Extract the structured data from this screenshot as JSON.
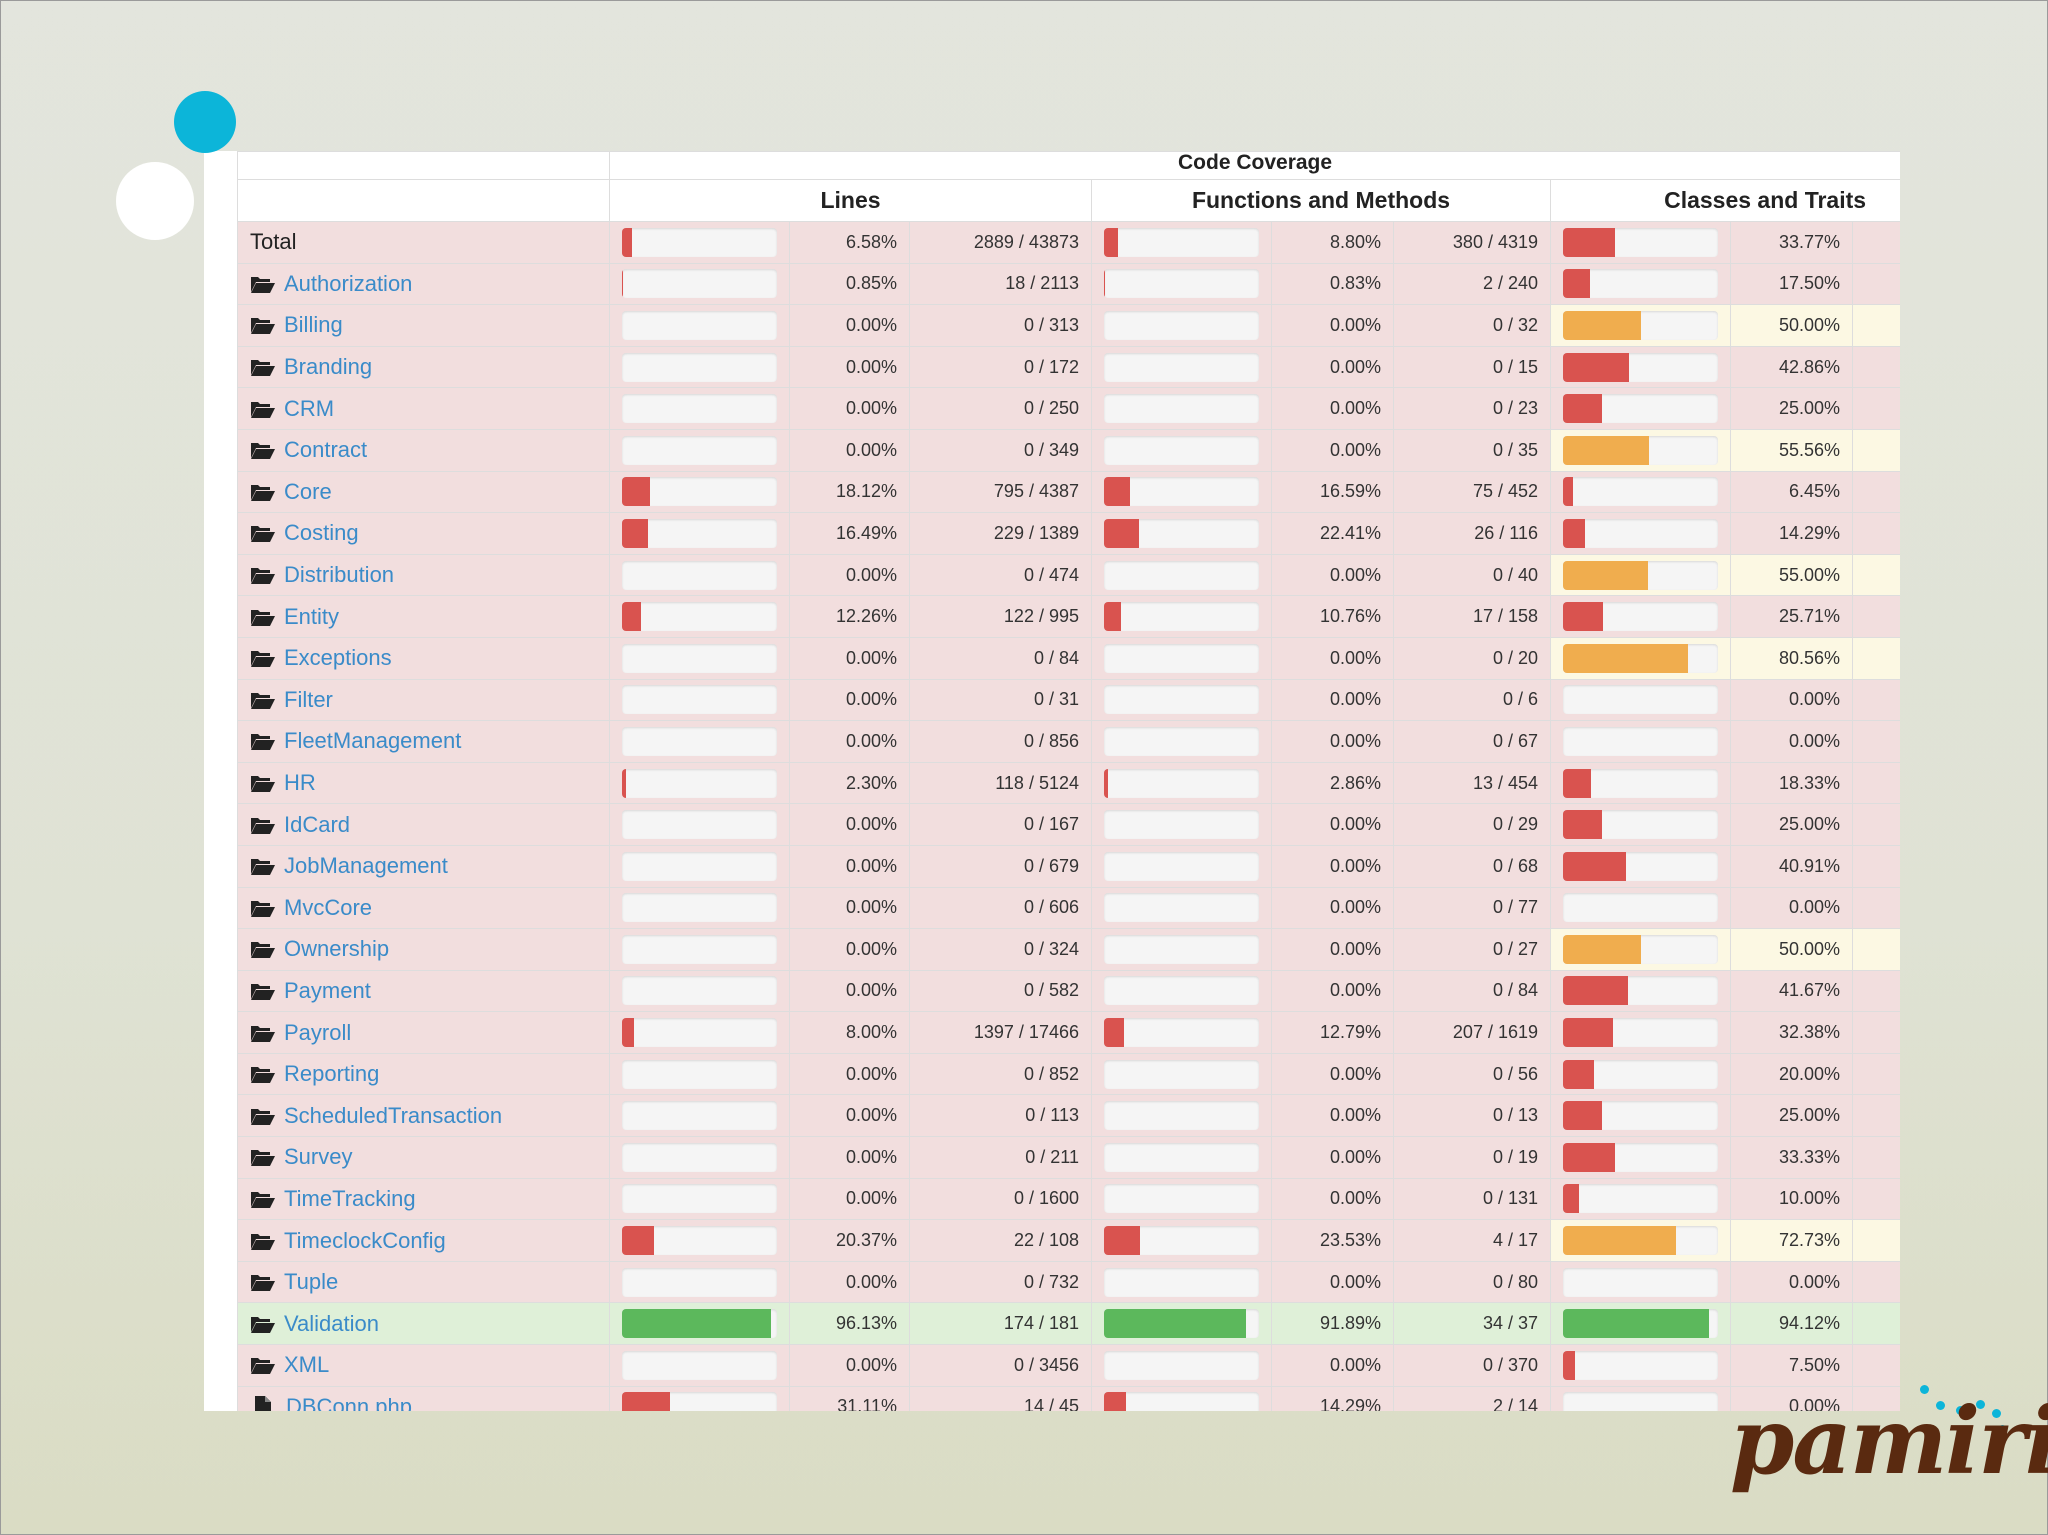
{
  "header": {
    "code_coverage": "Code Coverage",
    "lines": "Lines",
    "functions": "Functions and Methods",
    "classes": "Classes and Traits"
  },
  "rows": [
    {
      "name": "Total",
      "type": "total",
      "lines": {
        "bar": 6.58,
        "pct": "6.58%",
        "count": "2889 / 43873"
      },
      "funcs": {
        "bar": 8.8,
        "pct": "8.80%",
        "count": "380 / 4319"
      },
      "classes": {
        "bar": 33.77,
        "pct": "33.77%"
      }
    },
    {
      "name": "Authorization",
      "type": "dir",
      "lines": {
        "bar": 0.85,
        "pct": "0.85%",
        "count": "18 / 2113"
      },
      "funcs": {
        "bar": 0.83,
        "pct": "0.83%",
        "count": "2 / 240"
      },
      "classes": {
        "bar": 17.5,
        "pct": "17.50%"
      }
    },
    {
      "name": "Billing",
      "type": "dir",
      "lines": {
        "bar": 0,
        "pct": "0.00%",
        "count": "0 / 313"
      },
      "funcs": {
        "bar": 0,
        "pct": "0.00%",
        "count": "0 / 32"
      },
      "classes": {
        "bar": 50.0,
        "pct": "50.00%"
      }
    },
    {
      "name": "Branding",
      "type": "dir",
      "lines": {
        "bar": 0,
        "pct": "0.00%",
        "count": "0 / 172"
      },
      "funcs": {
        "bar": 0,
        "pct": "0.00%",
        "count": "0 / 15"
      },
      "classes": {
        "bar": 42.86,
        "pct": "42.86%"
      }
    },
    {
      "name": "CRM",
      "type": "dir",
      "lines": {
        "bar": 0,
        "pct": "0.00%",
        "count": "0 / 250"
      },
      "funcs": {
        "bar": 0,
        "pct": "0.00%",
        "count": "0 / 23"
      },
      "classes": {
        "bar": 25.0,
        "pct": "25.00%"
      }
    },
    {
      "name": "Contract",
      "type": "dir",
      "lines": {
        "bar": 0,
        "pct": "0.00%",
        "count": "0 / 349"
      },
      "funcs": {
        "bar": 0,
        "pct": "0.00%",
        "count": "0 / 35"
      },
      "classes": {
        "bar": 55.56,
        "pct": "55.56%"
      }
    },
    {
      "name": "Core",
      "type": "dir",
      "lines": {
        "bar": 18.12,
        "pct": "18.12%",
        "count": "795 / 4387"
      },
      "funcs": {
        "bar": 16.59,
        "pct": "16.59%",
        "count": "75 / 452"
      },
      "classes": {
        "bar": 6.45,
        "pct": "6.45%"
      }
    },
    {
      "name": "Costing",
      "type": "dir",
      "lines": {
        "bar": 16.49,
        "pct": "16.49%",
        "count": "229 / 1389"
      },
      "funcs": {
        "bar": 22.41,
        "pct": "22.41%",
        "count": "26 / 116"
      },
      "classes": {
        "bar": 14.29,
        "pct": "14.29%"
      }
    },
    {
      "name": "Distribution",
      "type": "dir",
      "lines": {
        "bar": 0,
        "pct": "0.00%",
        "count": "0 / 474"
      },
      "funcs": {
        "bar": 0,
        "pct": "0.00%",
        "count": "0 / 40"
      },
      "classes": {
        "bar": 55.0,
        "pct": "55.00%"
      }
    },
    {
      "name": "Entity",
      "type": "dir",
      "lines": {
        "bar": 12.26,
        "pct": "12.26%",
        "count": "122 / 995"
      },
      "funcs": {
        "bar": 10.76,
        "pct": "10.76%",
        "count": "17 / 158"
      },
      "classes": {
        "bar": 25.71,
        "pct": "25.71%"
      }
    },
    {
      "name": "Exceptions",
      "type": "dir",
      "lines": {
        "bar": 0,
        "pct": "0.00%",
        "count": "0 / 84"
      },
      "funcs": {
        "bar": 0,
        "pct": "0.00%",
        "count": "0 / 20"
      },
      "classes": {
        "bar": 80.56,
        "pct": "80.56%"
      }
    },
    {
      "name": "Filter",
      "type": "dir",
      "lines": {
        "bar": 0,
        "pct": "0.00%",
        "count": "0 / 31"
      },
      "funcs": {
        "bar": 0,
        "pct": "0.00%",
        "count": "0 / 6"
      },
      "classes": {
        "bar": 0,
        "pct": "0.00%"
      }
    },
    {
      "name": "FleetManagement",
      "type": "dir",
      "lines": {
        "bar": 0,
        "pct": "0.00%",
        "count": "0 / 856"
      },
      "funcs": {
        "bar": 0,
        "pct": "0.00%",
        "count": "0 / 67"
      },
      "classes": {
        "bar": 0,
        "pct": "0.00%"
      }
    },
    {
      "name": "HR",
      "type": "dir",
      "lines": {
        "bar": 2.3,
        "pct": "2.30%",
        "count": "118 / 5124"
      },
      "funcs": {
        "bar": 2.86,
        "pct": "2.86%",
        "count": "13 / 454"
      },
      "classes": {
        "bar": 18.33,
        "pct": "18.33%"
      }
    },
    {
      "name": "IdCard",
      "type": "dir",
      "lines": {
        "bar": 0,
        "pct": "0.00%",
        "count": "0 / 167"
      },
      "funcs": {
        "bar": 0,
        "pct": "0.00%",
        "count": "0 / 29"
      },
      "classes": {
        "bar": 25.0,
        "pct": "25.00%"
      }
    },
    {
      "name": "JobManagement",
      "type": "dir",
      "lines": {
        "bar": 0,
        "pct": "0.00%",
        "count": "0 / 679"
      },
      "funcs": {
        "bar": 0,
        "pct": "0.00%",
        "count": "0 / 68"
      },
      "classes": {
        "bar": 40.91,
        "pct": "40.91%"
      }
    },
    {
      "name": "MvcCore",
      "type": "dir",
      "lines": {
        "bar": 0,
        "pct": "0.00%",
        "count": "0 / 606"
      },
      "funcs": {
        "bar": 0,
        "pct": "0.00%",
        "count": "0 / 77"
      },
      "classes": {
        "bar": 0,
        "pct": "0.00%"
      }
    },
    {
      "name": "Ownership",
      "type": "dir",
      "lines": {
        "bar": 0,
        "pct": "0.00%",
        "count": "0 / 324"
      },
      "funcs": {
        "bar": 0,
        "pct": "0.00%",
        "count": "0 / 27"
      },
      "classes": {
        "bar": 50.0,
        "pct": "50.00%"
      }
    },
    {
      "name": "Payment",
      "type": "dir",
      "lines": {
        "bar": 0,
        "pct": "0.00%",
        "count": "0 / 582"
      },
      "funcs": {
        "bar": 0,
        "pct": "0.00%",
        "count": "0 / 84"
      },
      "classes": {
        "bar": 41.67,
        "pct": "41.67%"
      }
    },
    {
      "name": "Payroll",
      "type": "dir",
      "lines": {
        "bar": 8.0,
        "pct": "8.00%",
        "count": "1397 / 17466"
      },
      "funcs": {
        "bar": 12.79,
        "pct": "12.79%",
        "count": "207 / 1619"
      },
      "classes": {
        "bar": 32.38,
        "pct": "32.38%"
      }
    },
    {
      "name": "Reporting",
      "type": "dir",
      "lines": {
        "bar": 0,
        "pct": "0.00%",
        "count": "0 / 852"
      },
      "funcs": {
        "bar": 0,
        "pct": "0.00%",
        "count": "0 / 56"
      },
      "classes": {
        "bar": 20.0,
        "pct": "20.00%"
      }
    },
    {
      "name": "ScheduledTransaction",
      "type": "dir",
      "lines": {
        "bar": 0,
        "pct": "0.00%",
        "count": "0 / 113"
      },
      "funcs": {
        "bar": 0,
        "pct": "0.00%",
        "count": "0 / 13"
      },
      "classes": {
        "bar": 25.0,
        "pct": "25.00%"
      }
    },
    {
      "name": "Survey",
      "type": "dir",
      "lines": {
        "bar": 0,
        "pct": "0.00%",
        "count": "0 / 211"
      },
      "funcs": {
        "bar": 0,
        "pct": "0.00%",
        "count": "0 / 19"
      },
      "classes": {
        "bar": 33.33,
        "pct": "33.33%"
      }
    },
    {
      "name": "TimeTracking",
      "type": "dir",
      "lines": {
        "bar": 0,
        "pct": "0.00%",
        "count": "0 / 1600"
      },
      "funcs": {
        "bar": 0,
        "pct": "0.00%",
        "count": "0 / 131"
      },
      "classes": {
        "bar": 10.0,
        "pct": "10.00%"
      }
    },
    {
      "name": "TimeclockConfig",
      "type": "dir",
      "lines": {
        "bar": 20.37,
        "pct": "20.37%",
        "count": "22 / 108"
      },
      "funcs": {
        "bar": 23.53,
        "pct": "23.53%",
        "count": "4 / 17"
      },
      "classes": {
        "bar": 72.73,
        "pct": "72.73%"
      }
    },
    {
      "name": "Tuple",
      "type": "dir",
      "lines": {
        "bar": 0,
        "pct": "0.00%",
        "count": "0 / 732"
      },
      "funcs": {
        "bar": 0,
        "pct": "0.00%",
        "count": "0 / 80"
      },
      "classes": {
        "bar": 0,
        "pct": "0.00%"
      }
    },
    {
      "name": "Validation",
      "type": "dir",
      "lines": {
        "bar": 96.13,
        "pct": "96.13%",
        "count": "174 / 181"
      },
      "funcs": {
        "bar": 91.89,
        "pct": "91.89%",
        "count": "34 / 37"
      },
      "classes": {
        "bar": 94.12,
        "pct": "94.12%"
      }
    },
    {
      "name": "XML",
      "type": "dir",
      "lines": {
        "bar": 0,
        "pct": "0.00%",
        "count": "0 / 3456"
      },
      "funcs": {
        "bar": 0,
        "pct": "0.00%",
        "count": "0 / 370"
      },
      "classes": {
        "bar": 7.5,
        "pct": "7.50%"
      }
    },
    {
      "name": "DBConn.php",
      "type": "file",
      "lines": {
        "bar": 31.11,
        "pct": "31.11%",
        "count": "14 / 45"
      },
      "funcs": {
        "bar": 14.29,
        "pct": "14.29%",
        "count": "2 / 14"
      },
      "classes": {
        "bar": 0,
        "pct": "0.00%"
      }
    }
  ],
  "logo": {
    "text": "pamiris"
  },
  "colors": {
    "danger": "#d9534f",
    "warning": "#f0ad4e",
    "success": "#5cb85c",
    "row_danger": "#f2dede",
    "row_success": "#dff0d8",
    "cell_warning": "#fcf8e3",
    "link": "#3a8bc9",
    "accent_dot": "#0cb5d9",
    "logo": "#5a2a10"
  },
  "icons": {
    "directory": "folder-open-icon",
    "file": "file-icon"
  }
}
